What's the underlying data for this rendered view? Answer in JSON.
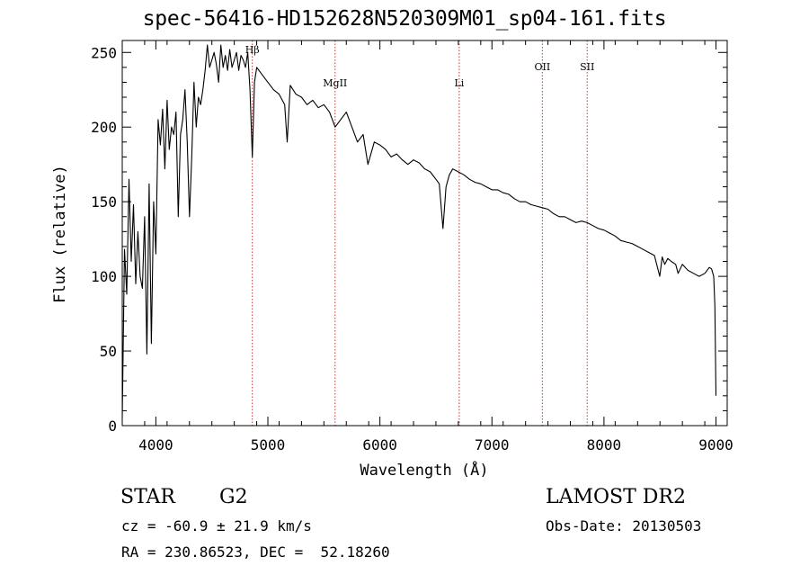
{
  "title": "spec-56416-HD152628N520309M01_sp04-161.fits",
  "info": {
    "class_label": "STAR",
    "subclass": "G2",
    "survey": "LAMOST DR2",
    "cz": "cz = -60.9 ± 21.9 km/s",
    "obs_date": "Obs-Date: 20130503",
    "radec": "RA = 230.86523, DEC =  52.18260"
  },
  "chart_data": {
    "type": "line",
    "title": "spec-56416-HD152628N520309M01_sp04-161.fits",
    "xlabel": "Wavelength (Å)",
    "ylabel": "Flux (relative)",
    "xlim": [
      3700,
      9100
    ],
    "ylim": [
      0,
      258
    ],
    "xticks": [
      4000,
      5000,
      6000,
      7000,
      8000,
      9000
    ],
    "yticks": [
      0,
      50,
      100,
      150,
      200,
      250
    ],
    "grid": false,
    "series": [
      {
        "color": "#000000",
        "x": [
          3700,
          3720,
          3740,
          3760,
          3780,
          3800,
          3820,
          3840,
          3860,
          3880,
          3900,
          3920,
          3940,
          3960,
          3980,
          4000,
          4020,
          4040,
          4060,
          4080,
          4100,
          4120,
          4140,
          4160,
          4180,
          4200,
          4220,
          4240,
          4260,
          4280,
          4300,
          4320,
          4340,
          4360,
          4380,
          4400,
          4420,
          4440,
          4460,
          4480,
          4500,
          4520,
          4540,
          4560,
          4580,
          4600,
          4620,
          4640,
          4660,
          4680,
          4700,
          4720,
          4740,
          4760,
          4780,
          4800,
          4820,
          4840,
          4861,
          4880,
          4900,
          4950,
          5000,
          5050,
          5100,
          5150,
          5172,
          5200,
          5250,
          5300,
          5350,
          5400,
          5450,
          5500,
          5550,
          5600,
          5650,
          5700,
          5750,
          5800,
          5850,
          5893,
          5950,
          6000,
          6050,
          6100,
          6150,
          6200,
          6250,
          6300,
          6350,
          6400,
          6450,
          6500,
          6530,
          6563,
          6590,
          6620,
          6650,
          6700,
          6750,
          6800,
          6850,
          6900,
          6950,
          7000,
          7050,
          7100,
          7150,
          7200,
          7250,
          7300,
          7350,
          7400,
          7450,
          7500,
          7550,
          7600,
          7650,
          7700,
          7750,
          7800,
          7850,
          7900,
          7950,
          8000,
          8050,
          8100,
          8150,
          8200,
          8250,
          8300,
          8350,
          8400,
          8450,
          8498,
          8520,
          8542,
          8570,
          8600,
          8640,
          8662,
          8700,
          8750,
          8800,
          8850,
          8900,
          8940,
          8960,
          8980,
          8990,
          9000
        ],
        "y": [
          5,
          118,
          88,
          165,
          110,
          148,
          95,
          130,
          100,
          92,
          140,
          48,
          162,
          55,
          150,
          115,
          205,
          188,
          212,
          172,
          218,
          185,
          200,
          195,
          210,
          140,
          195,
          205,
          225,
          190,
          140,
          180,
          230,
          200,
          220,
          215,
          225,
          238,
          255,
          240,
          245,
          250,
          242,
          230,
          255,
          240,
          248,
          238,
          252,
          240,
          245,
          250,
          238,
          248,
          245,
          240,
          250,
          225,
          180,
          230,
          240,
          235,
          230,
          225,
          222,
          215,
          190,
          228,
          222,
          220,
          215,
          218,
          213,
          215,
          210,
          200,
          205,
          210,
          200,
          190,
          195,
          175,
          190,
          188,
          185,
          180,
          182,
          178,
          175,
          178,
          176,
          172,
          170,
          165,
          162,
          132,
          160,
          168,
          172,
          170,
          168,
          165,
          163,
          162,
          160,
          158,
          158,
          156,
          155,
          152,
          150,
          150,
          148,
          147,
          146,
          145,
          142,
          140,
          140,
          138,
          136,
          137,
          136,
          134,
          132,
          131,
          129,
          127,
          124,
          123,
          122,
          120,
          118,
          116,
          114,
          100,
          113,
          108,
          112,
          110,
          108,
          102,
          108,
          104,
          102,
          100,
          102,
          106,
          105,
          100,
          80,
          20
        ]
      }
    ],
    "lines": [
      {
        "label": "Hβ",
        "x": 4861
      },
      {
        "label": "MgII",
        "x": 5600
      },
      {
        "label": "Li",
        "x": 6708
      },
      {
        "label": "OII",
        "x": 7450
      },
      {
        "label": "SII",
        "x": 7850
      }
    ]
  }
}
